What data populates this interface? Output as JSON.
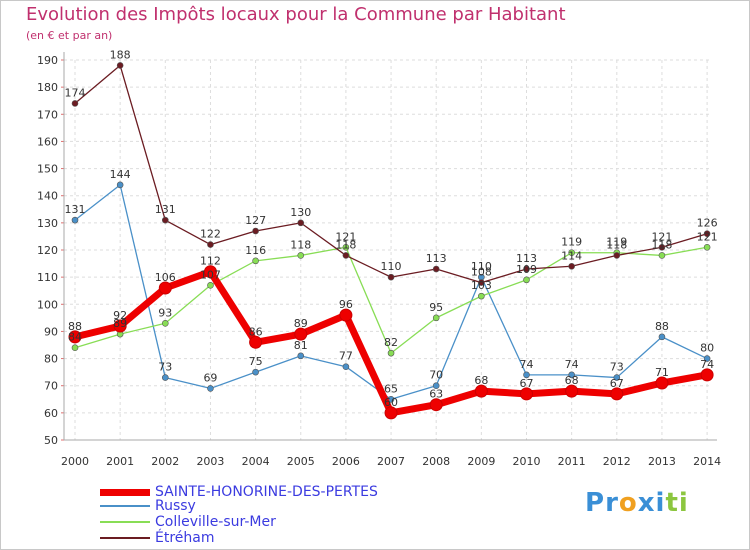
{
  "header": {
    "title": "Evolution des Impôts locaux pour la Commune par Habitant",
    "subtitle": "(en € et par an)"
  },
  "colors": {
    "title": "#c0306e",
    "grid": "#dddddd",
    "axis": "#aaaaaa"
  },
  "chart_data": {
    "type": "line",
    "title": "Evolution des Impôts locaux pour la Commune par Habitant",
    "subtitle": "(en € et par an)",
    "xlabel": "",
    "ylabel": "",
    "ylim": [
      50,
      190
    ],
    "yticks": [
      50,
      60,
      70,
      80,
      90,
      100,
      110,
      120,
      130,
      140,
      150,
      160,
      170,
      180,
      190
    ],
    "grid": true,
    "categories": [
      "2000",
      "2001",
      "2002",
      "2003",
      "2004",
      "2005",
      "2006",
      "2007",
      "2008",
      "2009",
      "2010",
      "2011",
      "2012",
      "2013",
      "2014"
    ],
    "series": [
      {
        "name": "SAINTE-HONORINE-DES-PERTES",
        "color": "#ee0000",
        "highlight": true,
        "values": [
          88,
          92,
          106,
          112,
          86,
          89,
          96,
          60,
          63,
          68,
          67,
          68,
          67,
          71,
          74
        ]
      },
      {
        "name": "Russy",
        "color": "#4a90c8",
        "highlight": false,
        "values": [
          131,
          144,
          73,
          69,
          75,
          81,
          77,
          65,
          70,
          110,
          74,
          74,
          73,
          88,
          80
        ]
      },
      {
        "name": "Colleville-sur-Mer",
        "color": "#88dd55",
        "highlight": false,
        "values": [
          84,
          89,
          93,
          107,
          116,
          118,
          121,
          82,
          95,
          103,
          109,
          119,
          119,
          118,
          121
        ]
      },
      {
        "name": "Étréham",
        "color": "#6b1c22",
        "highlight": false,
        "values": [
          174,
          188,
          131,
          122,
          127,
          130,
          118,
          110,
          113,
          108,
          113,
          114,
          118,
          121,
          126
        ]
      }
    ]
  },
  "legend": {
    "items": [
      {
        "label": "SAINTE-HONORINE-DES-PERTES"
      },
      {
        "label": "Russy"
      },
      {
        "label": "Colleville-sur-Mer"
      },
      {
        "label": "Étréham"
      }
    ]
  },
  "logo": {
    "letters": [
      "P",
      "r",
      "o",
      "x",
      "i",
      "t",
      "i"
    ],
    "colors": [
      "#3a8fd6",
      "#3a8fd6",
      "#f0a020",
      "#3a8fd6",
      "#3a8fd6",
      "#8cc63f",
      "#8cc63f"
    ]
  }
}
